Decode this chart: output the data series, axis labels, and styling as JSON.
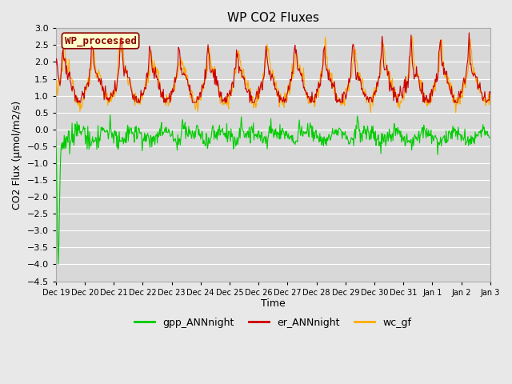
{
  "title": "WP CO2 Fluxes",
  "xlabel": "Time",
  "ylabel": "CO2 Flux (μmol/m2/s)",
  "ylim": [
    -4.5,
    3.0
  ],
  "yticks": [
    -4.5,
    -4.0,
    -3.5,
    -3.0,
    -2.5,
    -2.0,
    -1.5,
    -1.0,
    -0.5,
    0.0,
    0.5,
    1.0,
    1.5,
    2.0,
    2.5,
    3.0
  ],
  "bg_color": "#e8e8e8",
  "plot_bg_color": "#d8d8d8",
  "grid_color": "#ffffff",
  "line_colors": {
    "gpp": "#00cc00",
    "er": "#cc0000",
    "wc": "#ffaa00"
  },
  "legend_label": "WP_processed",
  "legend_text_color": "#8b0000",
  "legend_bg_color": "#ffffcc",
  "legend_border_color": "#8b0000",
  "series_labels": [
    "gpp_ANNnight",
    "er_ANNnight",
    "wc_gf"
  ],
  "x_tick_labels": [
    "Dec 19",
    "Dec 20",
    "Dec 21",
    "Dec 22",
    "Dec 23",
    "Dec 24",
    "Dec 25",
    "Dec 26",
    "Dec 27",
    "Dec 28",
    "Dec 29",
    "Dec 30",
    "Dec 31",
    "Jan 1",
    "Jan 2",
    "Jan 3"
  ],
  "figsize": [
    6.4,
    4.8
  ],
  "dpi": 100,
  "linewidth": 0.8
}
